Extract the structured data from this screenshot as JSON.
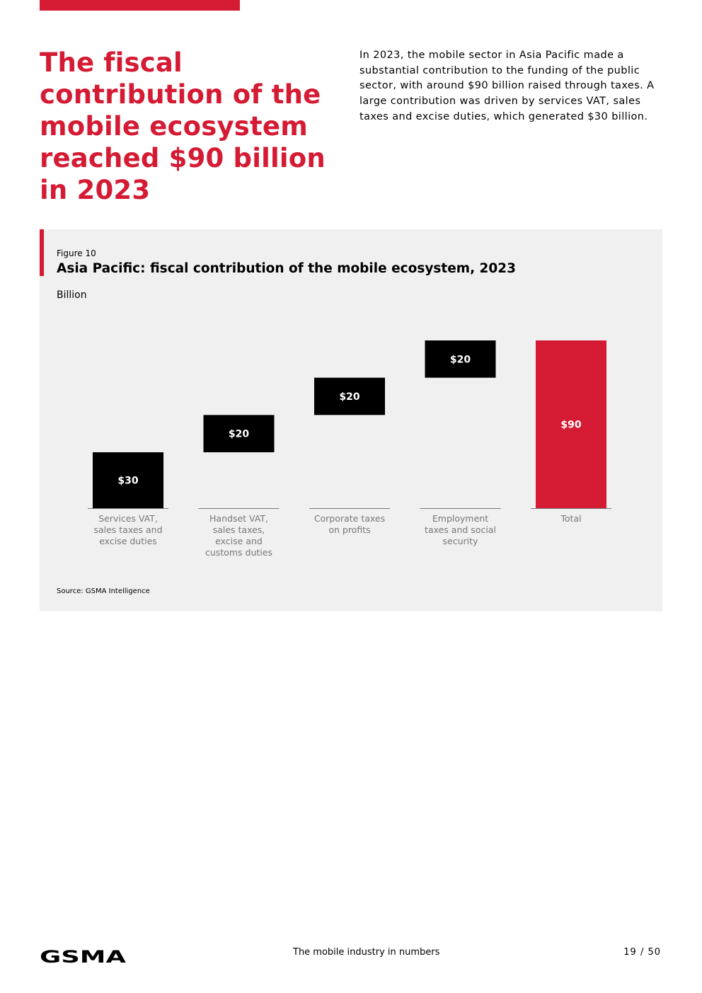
{
  "header": {
    "headline": "The fiscal contribution of the mobile ecosystem reached $90 billion in 2023",
    "intro": "In 2023, the mobile sector in Asia Pacific made a substantial contribution to the funding of the public sector, with around $90 billion raised through taxes. A large contribution was driven by services VAT, sales taxes and excise duties, which generated $30 billion."
  },
  "figure": {
    "label": "Figure 10",
    "title": "Asia Pacific: fiscal contribution of the mobile ecosystem, 2023",
    "unit": "Billion",
    "source": "Source: GSMA Intelligence"
  },
  "chart_data": {
    "type": "bar",
    "subtype": "waterfall",
    "title": "Asia Pacific: fiscal contribution of the mobile ecosystem, 2023",
    "ylabel": "Billion",
    "ylim": [
      0,
      90
    ],
    "categories": [
      "Services VAT, sales taxes and excise duties",
      "Handset VAT, sales taxes, excise and customs duties",
      "Corporate taxes on profits",
      "Employment taxes and social security",
      "Total"
    ],
    "category_lines": [
      [
        "Services VAT,",
        "sales taxes and",
        "excise duties"
      ],
      [
        "Handset VAT,",
        "sales taxes,",
        "excise and",
        "customs duties"
      ],
      [
        "Corporate taxes",
        "on profits"
      ],
      [
        "Employment",
        "taxes and social",
        "security"
      ],
      [
        "Total"
      ]
    ],
    "values": [
      30,
      20,
      20,
      20,
      90
    ],
    "is_total": [
      false,
      false,
      false,
      false,
      true
    ],
    "data_labels": [
      "$30",
      "$20",
      "$20",
      "$20",
      "$90"
    ],
    "colors": {
      "increment": "#000000",
      "total": "#d51a33",
      "label": "#ffffff",
      "axis_text": "#777777",
      "axis_line": "#777777"
    }
  },
  "footer": {
    "logo": "GSMA",
    "center": "The mobile industry in numbers",
    "page": "19 / 50"
  },
  "colors": {
    "accent": "#d51a33",
    "panel": "#f0f0f0"
  }
}
